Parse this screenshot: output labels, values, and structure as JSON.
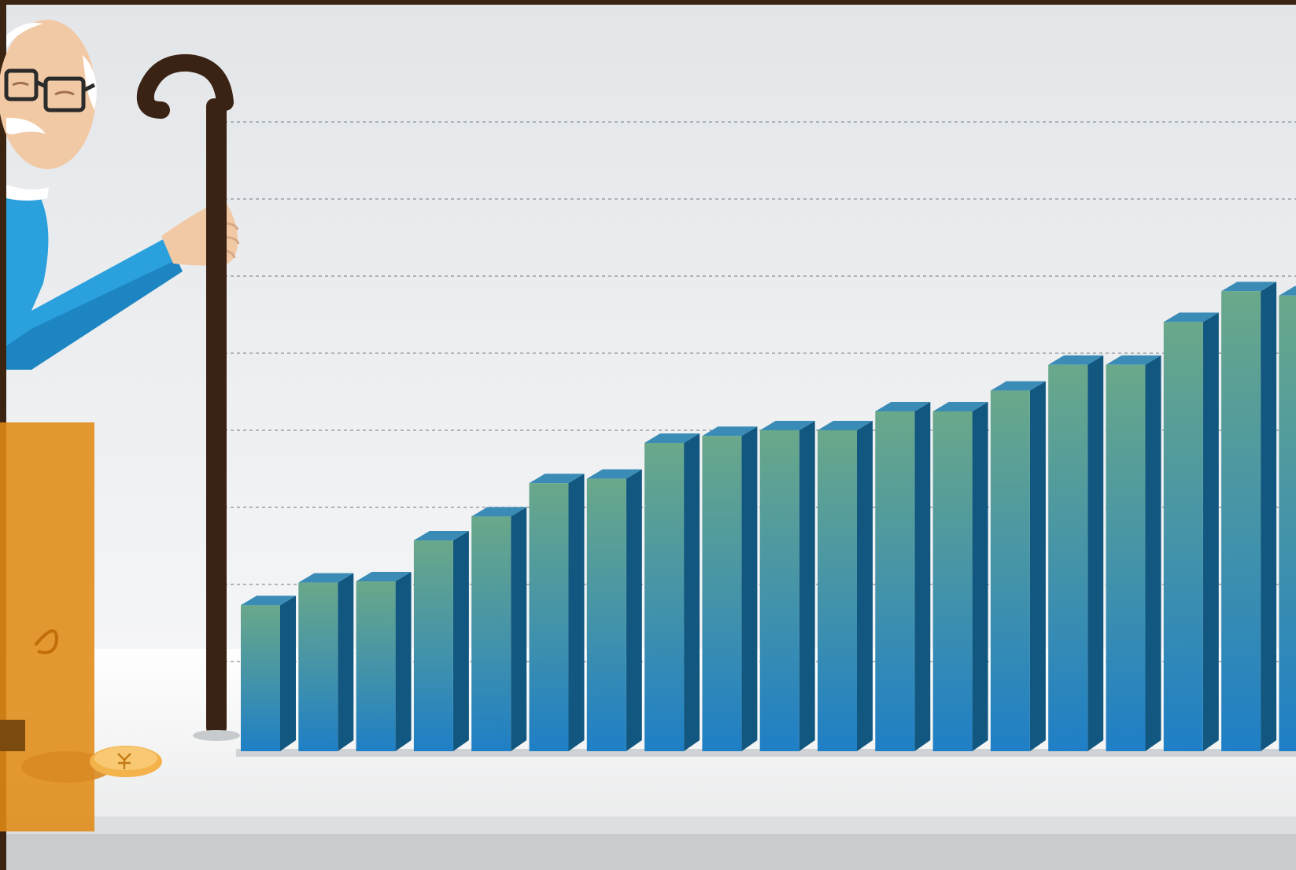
{
  "scene": {
    "subject": "illustration",
    "colors": {
      "frame": "#3b2412",
      "wall_top": "#e6e9ec",
      "wall_bottom": "#f3f4f6",
      "floor": "#f4f4f4",
      "bar_top": "#6aa88a",
      "bar_bottom": "#1f7fc6",
      "bar_side": "#12577f",
      "bar_cap": "#3a8cb6",
      "cane": "#3a2214",
      "shirt": "#2aa0dd",
      "skin": "#f2c9a5",
      "overlay": "#e08a14",
      "coin": "#f3b24a"
    },
    "bar_levels": [
      0.232,
      0.268,
      0.27,
      0.335,
      0.373,
      0.426,
      0.433,
      0.49,
      0.501,
      0.51,
      0.51,
      0.54,
      0.54,
      0.573,
      0.614,
      0.614,
      0.682,
      0.731,
      0.724
    ]
  }
}
